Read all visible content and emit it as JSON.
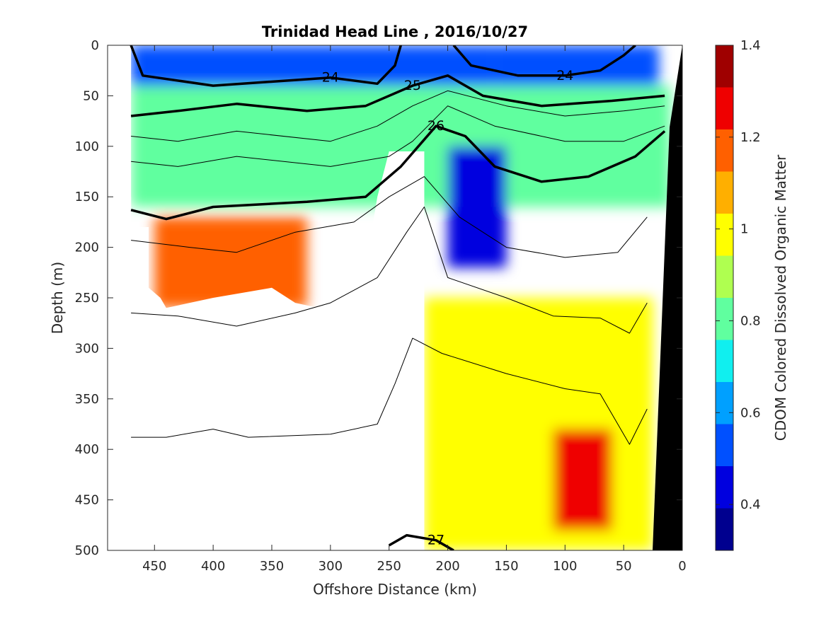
{
  "chart_data": {
    "type": "heatmap",
    "title": "Trinidad Head Line , 2016/10/27",
    "xlabel": "Offshore Distance (km)",
    "ylabel": "Depth (m)",
    "colorbar_label": "CDOM Colored Dissolved Organic Matter",
    "xlim": [
      490,
      0
    ],
    "ylim": [
      0,
      500
    ],
    "x_reversed": true,
    "y_reversed": true,
    "x_ticks": [
      450,
      400,
      350,
      300,
      250,
      200,
      150,
      100,
      50,
      0
    ],
    "y_ticks": [
      0,
      50,
      100,
      150,
      200,
      250,
      300,
      350,
      400,
      450,
      500
    ],
    "colorbar": {
      "range": [
        0.3,
        1.4
      ],
      "ticks": [
        "1.4",
        "1.2",
        "1",
        "0.8",
        "0.6",
        "0.4"
      ],
      "tick_values": [
        1.4,
        1.2,
        1.0,
        0.8,
        0.6,
        0.4
      ],
      "colormap": [
        "#00008f",
        "#0000df",
        "#0050ff",
        "#00a0ff",
        "#10efef",
        "#60ff9f",
        "#afff50",
        "#ffff00",
        "#ffaf00",
        "#ff6000",
        "#ef0000",
        "#9f0000"
      ]
    },
    "field_regions": [
      {
        "name": "surface-low",
        "value": 0.5,
        "x": [
          470,
          160
        ],
        "depth": [
          0,
          40
        ]
      },
      {
        "name": "surface-low-nearshore",
        "value": 0.55,
        "x": [
          160,
          20
        ],
        "depth": [
          0,
          40
        ]
      },
      {
        "name": "upper-mixed",
        "value": 0.8,
        "x": [
          470,
          10
        ],
        "depth": [
          40,
          160
        ]
      },
      {
        "name": "core-low",
        "value": 0.45,
        "x": [
          200,
          150
        ],
        "depth": [
          100,
          220
        ]
      },
      {
        "name": "offshore-high",
        "value": 1.15,
        "x": [
          450,
          320
        ],
        "depth": [
          170,
          260
        ]
      },
      {
        "name": "deep-nearshore",
        "value": 0.95,
        "x": [
          220,
          25
        ],
        "depth": [
          250,
          500
        ]
      },
      {
        "name": "deep-high-patch",
        "value": 1.25,
        "x": [
          110,
          60
        ],
        "depth": [
          380,
          480
        ]
      }
    ],
    "contours": [
      {
        "level": "24",
        "major": true,
        "points": [
          [
            470,
            0
          ],
          [
            460,
            30
          ],
          [
            400,
            40
          ],
          [
            300,
            32
          ],
          [
            260,
            38
          ],
          [
            245,
            20
          ],
          [
            240,
            0
          ]
        ]
      },
      {
        "level": "24",
        "major": true,
        "points": [
          [
            195,
            0
          ],
          [
            180,
            20
          ],
          [
            140,
            30
          ],
          [
            100,
            30
          ],
          [
            70,
            25
          ],
          [
            50,
            10
          ],
          [
            40,
            0
          ]
        ]
      },
      {
        "level": "25",
        "major": true,
        "points": [
          [
            470,
            70
          ],
          [
            430,
            65
          ],
          [
            380,
            58
          ],
          [
            320,
            65
          ],
          [
            270,
            60
          ],
          [
            230,
            40
          ],
          [
            200,
            30
          ],
          [
            170,
            50
          ],
          [
            120,
            60
          ],
          [
            60,
            55
          ],
          [
            15,
            50
          ]
        ]
      },
      {
        "level": "26",
        "major": true,
        "points": [
          [
            470,
            163
          ],
          [
            440,
            172
          ],
          [
            400,
            160
          ],
          [
            320,
            155
          ],
          [
            270,
            150
          ],
          [
            240,
            120
          ],
          [
            210,
            80
          ],
          [
            185,
            90
          ],
          [
            160,
            120
          ],
          [
            120,
            135
          ],
          [
            80,
            130
          ],
          [
            40,
            110
          ],
          [
            15,
            85
          ]
        ]
      },
      {
        "level": "27",
        "major": true,
        "points": [
          [
            250,
            495
          ],
          [
            235,
            485
          ],
          [
            210,
            490
          ],
          [
            195,
            500
          ]
        ]
      },
      {
        "level": "",
        "major": false,
        "points": [
          [
            470,
            90
          ],
          [
            430,
            95
          ],
          [
            380,
            85
          ],
          [
            300,
            95
          ],
          [
            260,
            80
          ],
          [
            230,
            60
          ],
          [
            200,
            45
          ],
          [
            150,
            60
          ],
          [
            100,
            70
          ],
          [
            50,
            65
          ],
          [
            15,
            60
          ]
        ]
      },
      {
        "level": "",
        "major": false,
        "points": [
          [
            470,
            115
          ],
          [
            430,
            120
          ],
          [
            380,
            110
          ],
          [
            300,
            120
          ],
          [
            250,
            110
          ],
          [
            230,
            95
          ],
          [
            200,
            60
          ],
          [
            160,
            80
          ],
          [
            100,
            95
          ],
          [
            50,
            95
          ],
          [
            15,
            80
          ]
        ]
      },
      {
        "level": "",
        "major": false,
        "points": [
          [
            470,
            193
          ],
          [
            420,
            200
          ],
          [
            380,
            205
          ],
          [
            330,
            185
          ],
          [
            280,
            175
          ],
          [
            250,
            150
          ],
          [
            220,
            130
          ],
          [
            190,
            170
          ],
          [
            150,
            200
          ],
          [
            100,
            210
          ],
          [
            55,
            205
          ],
          [
            30,
            170
          ]
        ]
      },
      {
        "level": "",
        "major": false,
        "points": [
          [
            470,
            265
          ],
          [
            430,
            268
          ],
          [
            380,
            278
          ],
          [
            330,
            265
          ],
          [
            300,
            255
          ],
          [
            260,
            230
          ],
          [
            235,
            185
          ],
          [
            220,
            160
          ],
          [
            200,
            230
          ],
          [
            150,
            250
          ],
          [
            110,
            268
          ],
          [
            70,
            270
          ],
          [
            45,
            285
          ],
          [
            30,
            255
          ]
        ]
      },
      {
        "level": "",
        "major": false,
        "points": [
          [
            470,
            388
          ],
          [
            440,
            388
          ],
          [
            400,
            380
          ],
          [
            370,
            388
          ],
          [
            300,
            385
          ],
          [
            260,
            375
          ],
          [
            245,
            335
          ],
          [
            230,
            290
          ],
          [
            205,
            305
          ],
          [
            150,
            325
          ],
          [
            100,
            340
          ],
          [
            70,
            345
          ],
          [
            45,
            395
          ],
          [
            30,
            360
          ]
        ]
      }
    ]
  }
}
